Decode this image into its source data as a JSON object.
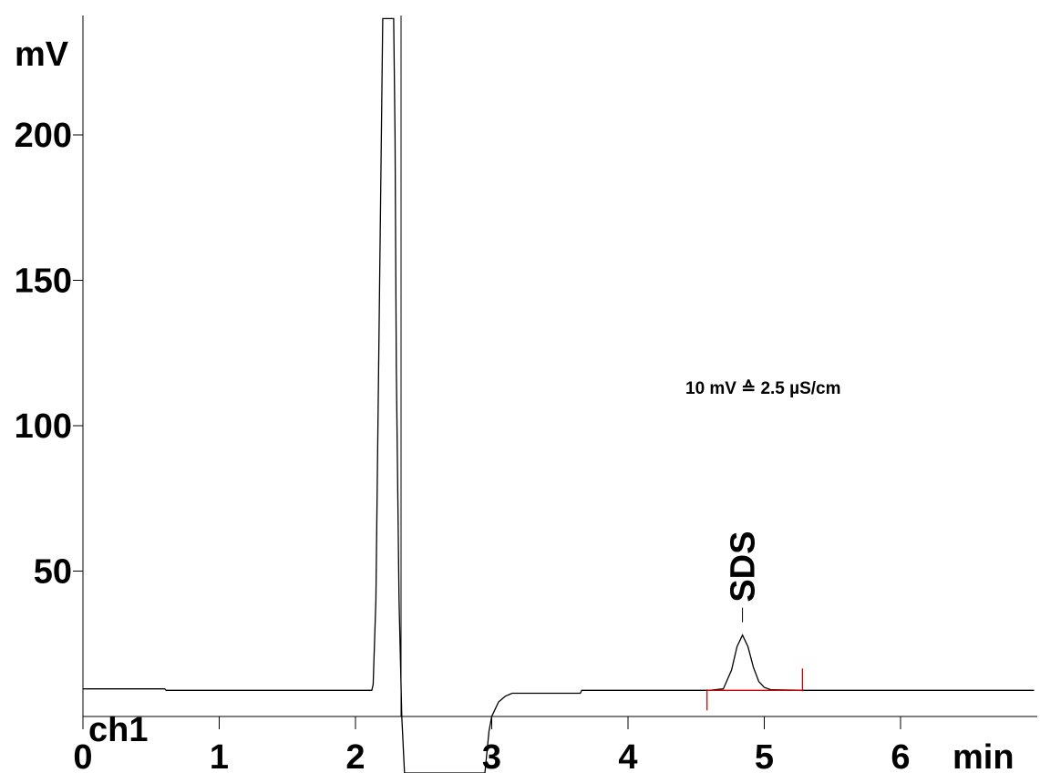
{
  "chart_data": {
    "type": "line",
    "title": "",
    "xlabel": "min",
    "ylabel": "mV",
    "channel_label": "ch1",
    "annotation": "10 mV ≙  2.5 µS/cm",
    "xlim": [
      0,
      6.98
    ],
    "ylim": [
      0,
      240
    ],
    "x_ticks": [
      {
        "value": 0,
        "label": "0"
      },
      {
        "value": 1,
        "label": "1"
      },
      {
        "value": 2,
        "label": "2"
      },
      {
        "value": 3,
        "label": "3"
      },
      {
        "value": 4,
        "label": "4"
      },
      {
        "value": 5,
        "label": "5"
      },
      {
        "value": 6,
        "label": "6"
      }
    ],
    "y_ticks": [
      {
        "value": 50,
        "label": "50"
      },
      {
        "value": 100,
        "label": "100"
      },
      {
        "value": 150,
        "label": "150"
      },
      {
        "value": 200,
        "label": "200"
      }
    ],
    "grid": false,
    "series": [
      {
        "color": "#000000",
        "points": [
          [
            0.0,
            9.5
          ],
          [
            0.6,
            9.5
          ],
          [
            0.61,
            9
          ],
          [
            2.12,
            9
          ],
          [
            2.13,
            11
          ],
          [
            2.15,
            40
          ],
          [
            2.17,
            120
          ],
          [
            2.19,
            200
          ],
          [
            2.2,
            240
          ],
          [
            2.21,
            240
          ],
          [
            2.22,
            240
          ],
          [
            2.23,
            240
          ],
          [
            2.24,
            240
          ],
          [
            2.25,
            240
          ],
          [
            2.26,
            240
          ],
          [
            2.28,
            240
          ],
          [
            2.29,
            200
          ],
          [
            2.3,
            120
          ],
          [
            2.32,
            40
          ],
          [
            2.34,
            0
          ],
          [
            2.36,
            -60
          ],
          [
            2.9,
            -60
          ],
          [
            2.95,
            -20
          ],
          [
            2.98,
            -5
          ],
          [
            3.0,
            0
          ],
          [
            3.05,
            5
          ],
          [
            3.1,
            7
          ],
          [
            3.15,
            8
          ],
          [
            3.5,
            8
          ],
          [
            3.65,
            8
          ],
          [
            3.66,
            9
          ],
          [
            4.6,
            9
          ],
          [
            4.7,
            9.5
          ],
          [
            4.76,
            16
          ],
          [
            4.8,
            24
          ],
          [
            4.84,
            28
          ],
          [
            4.88,
            24
          ],
          [
            4.92,
            17
          ],
          [
            4.96,
            12
          ],
          [
            5.0,
            10
          ],
          [
            5.05,
            9.2
          ],
          [
            5.3,
            9
          ],
          [
            6.98,
            9
          ]
        ]
      }
    ],
    "peaks": [
      {
        "name": "SDS",
        "retention_time": 4.84,
        "height": 28
      }
    ],
    "integration_baseline": {
      "color": "#d40000",
      "start": 4.58,
      "end": 5.28,
      "level": 9
    }
  }
}
